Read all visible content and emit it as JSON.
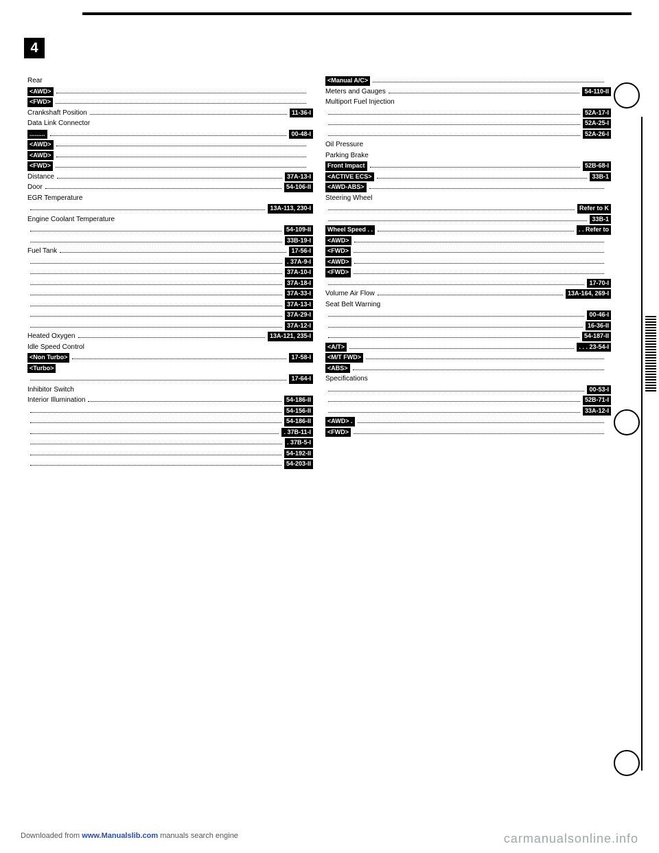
{
  "chapter_number": "4",
  "columns": [
    [
      {
        "lbl": "Rear",
        "tag": null,
        "ref": null
      },
      {
        "lbl": "",
        "tag": "<AWD>",
        "ref": ""
      },
      {
        "lbl": "",
        "tag": "<FWD>",
        "ref": ""
      },
      {
        "lbl": "Crankshaft Position",
        "tag": null,
        "ref": "11-36-I"
      },
      {
        "lbl": "Data Link Connector",
        "tag": null,
        "ref": null
      },
      {
        "lbl": "",
        "tag": ".........",
        "ref": "00-48-I"
      },
      {
        "lbl": "",
        "tag": "<AWD>",
        "ref": ""
      },
      {
        "lbl": "",
        "tag": "<AWD>",
        "ref": ""
      },
      {
        "lbl": "",
        "tag": "<FWD>",
        "ref": ""
      },
      {
        "lbl": "Distance",
        "tag": null,
        "ref": "37A-13-I"
      },
      {
        "lbl": "Door",
        "tag": null,
        "ref": "54-106-II"
      },
      {
        "lbl": "EGR Temperature",
        "tag": null,
        "ref": null
      },
      {
        "lbl": "",
        "tag": null,
        "ref": "13A-113, 230-I"
      },
      {
        "lbl": "Engine Coolant Temperature",
        "tag": null,
        "ref": null
      },
      {
        "lbl": "",
        "tag": null,
        "ref": "54-109-II"
      },
      {
        "lbl": "",
        "tag": null,
        "ref": "33B-19-I"
      },
      {
        "lbl": "Fuel Tank",
        "tag": null,
        "ref": "17-56-I"
      },
      {
        "lbl": "",
        "tag": null,
        "ref": ". 37A-9-I"
      },
      {
        "lbl": "",
        "tag": null,
        "ref": "37A-10-I"
      },
      {
        "lbl": "",
        "tag": null,
        "ref": "37A-18-I"
      },
      {
        "lbl": "",
        "tag": null,
        "ref": "37A-33-I"
      },
      {
        "lbl": "",
        "tag": null,
        "ref": "37A-13-I"
      },
      {
        "lbl": "",
        "tag": null,
        "ref": "37A-29-I"
      },
      {
        "lbl": "",
        "tag": null,
        "ref": "37A-12-I"
      },
      {
        "lbl": "Heated Oxygen",
        "tag": null,
        "ref": "13A-121, 235-I"
      },
      {
        "lbl": "Idle Speed Control",
        "tag": null,
        "ref": null
      },
      {
        "lbl": "",
        "tag": "<Non Turbo>",
        "ref": "17-58-I"
      },
      {
        "lbl": "",
        "tag": "<Turbo>",
        "ref": null
      },
      {
        "lbl": "",
        "tag": null,
        "ref": "17-64-I"
      },
      {
        "lbl": "Inhibitor Switch",
        "tag": null,
        "ref": null
      },
      {
        "lbl": "Interior Illumination",
        "tag": null,
        "ref": "54-186-II"
      },
      {
        "lbl": "",
        "tag": null,
        "ref": "54-156-II"
      },
      {
        "lbl": "",
        "tag": null,
        "ref": "54-186-II"
      },
      {
        "lbl": "",
        "tag": null,
        "ref": ". 37B-11-I"
      },
      {
        "lbl": "",
        "tag": null,
        "ref": ". 37B-5-I"
      },
      {
        "lbl": "",
        "tag": null,
        "ref": "54-192-II"
      },
      {
        "lbl": "",
        "tag": null,
        "ref": "54-203-II"
      }
    ],
    [
      {
        "lbl": "",
        "tag": "<Manual A/C>",
        "ref": ""
      },
      {
        "lbl": "Meters and Gauges",
        "tag": null,
        "ref": "54-110-II"
      },
      {
        "lbl": "Multiport Fuel Injection",
        "tag": null,
        "ref": null
      },
      {
        "lbl": "",
        "tag": null,
        "ref": "52A-17-I"
      },
      {
        "lbl": "",
        "tag": null,
        "ref": "52A-25-I"
      },
      {
        "lbl": "",
        "tag": null,
        "ref": "52A-26-I"
      },
      {
        "lbl": "Oil Pressure",
        "tag": null,
        "ref": null
      },
      {
        "lbl": "Parking Brake",
        "tag": null,
        "ref": null
      },
      {
        "lbl": "",
        "tag": "Front Impact",
        "ref": "52B-68-I"
      },
      {
        "lbl": "",
        "tag": "<ACTIVE ECS>",
        "ref": "33B-1"
      },
      {
        "lbl": "",
        "tag": "<AWD-ABS>",
        "ref": ""
      },
      {
        "lbl": "Steering Wheel",
        "tag": null,
        "ref": null
      },
      {
        "lbl": "",
        "tag": null,
        "ref": "Refer to K"
      },
      {
        "lbl": "",
        "tag": null,
        "ref": "33B-1"
      },
      {
        "lbl": "",
        "tag": "Wheel Speed  . .",
        "ref": ". . Refer to"
      },
      {
        "lbl": "",
        "tag": "<AWD>",
        "ref": ""
      },
      {
        "lbl": "",
        "tag": "<FWD>",
        "ref": ""
      },
      {
        "lbl": "",
        "tag": "<AWD>",
        "ref": ""
      },
      {
        "lbl": "",
        "tag": "<FWD>",
        "ref": ""
      },
      {
        "lbl": "",
        "tag": null,
        "ref": "17-70-I"
      },
      {
        "lbl": "Volume Air Flow",
        "tag": null,
        "ref": "13A-164, 269-I"
      },
      {
        "lbl": "Seat Belt Warning",
        "tag": null,
        "ref": null
      },
      {
        "lbl": "",
        "tag": null,
        "ref": "00-46-I"
      },
      {
        "lbl": "",
        "tag": null,
        "ref": "16-36-II"
      },
      {
        "lbl": "",
        "tag": null,
        "ref": "54-187-II"
      },
      {
        "lbl": "",
        "tag": "<A/T>",
        "ref": ". . . 23-54-I"
      },
      {
        "lbl": "",
        "tag": "<M/T FWD>",
        "ref": ""
      },
      {
        "lbl": "",
        "tag": "<ABS>",
        "ref": ""
      },
      {
        "lbl": "Specifications",
        "tag": null,
        "ref": null
      },
      {
        "lbl": "",
        "tag": null,
        "ref": "00-53-I"
      },
      {
        "lbl": "",
        "tag": null,
        "ref": "52B-71-I"
      },
      {
        "lbl": "",
        "tag": null,
        "ref": "33A-12-I"
      },
      {
        "lbl": "",
        "tag": "<AWD> .",
        "ref": ""
      },
      {
        "lbl": "",
        "tag": "<FWD>",
        "ref": ""
      }
    ]
  ],
  "footer_left_pre": "Downloaded from ",
  "footer_left_link": "www.Manualslib.com",
  "footer_left_post": "  manuals search engine",
  "footer_right": "carmanualsonline.info"
}
